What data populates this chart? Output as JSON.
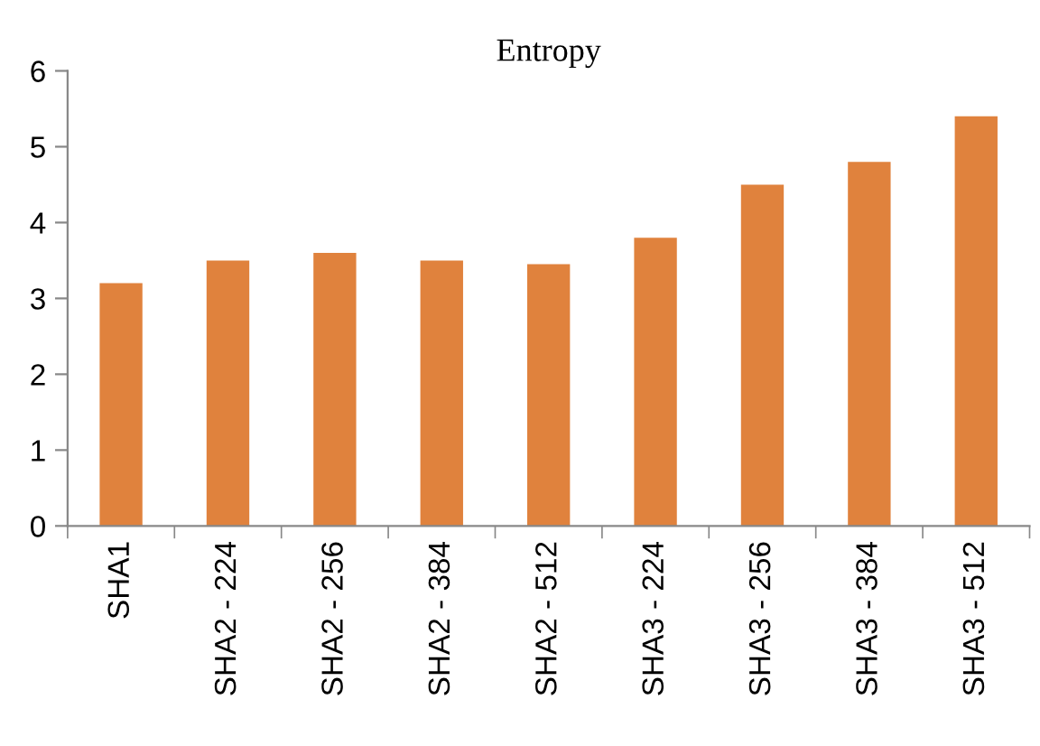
{
  "chart_data": {
    "type": "bar",
    "title": "Entropy",
    "categories": [
      "SHA1",
      "SHA2 - 224",
      "SHA2 - 256",
      "SHA2 - 384",
      "SHA2 - 512",
      "SHA3 - 224",
      "SHA3 - 256",
      "SHA3 - 384",
      "SHA3 - 512"
    ],
    "values": [
      3.2,
      3.5,
      3.6,
      3.5,
      3.45,
      3.8,
      4.5,
      4.8,
      5.4
    ],
    "color": "#e0823d",
    "ylim": [
      0,
      6
    ],
    "yticks": [
      0,
      1,
      2,
      3,
      4,
      5,
      6
    ],
    "grid": false,
    "legend": false
  }
}
